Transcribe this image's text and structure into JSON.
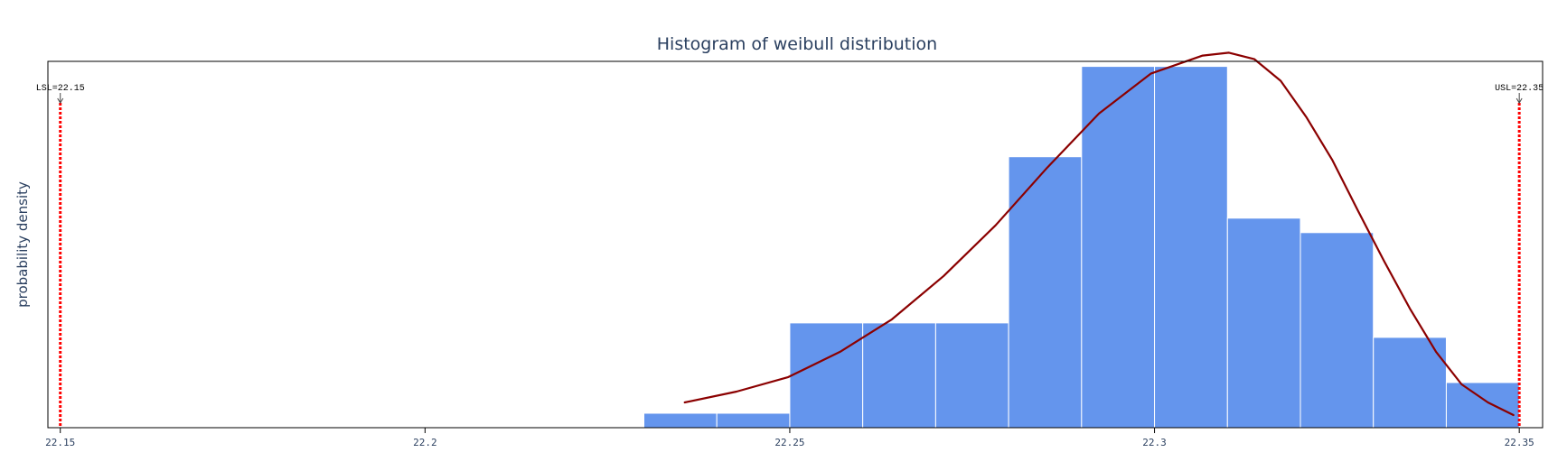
{
  "chart_data": {
    "type": "bar",
    "title": "Histogram of weibull distribution",
    "xlabel": "",
    "ylabel": "probability density",
    "xlim": [
      22.1483,
      22.3532
    ],
    "ylim": [
      0,
      1.014
    ],
    "x_ticks": [
      {
        "value": 22.15,
        "label": "22.15"
      },
      {
        "value": 22.2,
        "label": "22.2"
      },
      {
        "value": 22.25,
        "label": "22.25"
      },
      {
        "value": 22.3,
        "label": "22.3"
      },
      {
        "value": 22.35,
        "label": "22.35"
      }
    ],
    "bins": [
      {
        "x0": 22.23,
        "x1": 22.24,
        "y": 0.04
      },
      {
        "x0": 22.24,
        "x1": 22.25,
        "y": 0.04
      },
      {
        "x0": 22.25,
        "x1": 22.26,
        "y": 0.29
      },
      {
        "x0": 22.26,
        "x1": 22.27,
        "y": 0.29
      },
      {
        "x0": 22.27,
        "x1": 22.28,
        "y": 0.29
      },
      {
        "x0": 22.28,
        "x1": 22.29,
        "y": 0.75
      },
      {
        "x0": 22.29,
        "x1": 22.3,
        "y": 1.0
      },
      {
        "x0": 22.3,
        "x1": 22.31,
        "y": 1.0
      },
      {
        "x0": 22.31,
        "x1": 22.32,
        "y": 0.58
      },
      {
        "x0": 22.32,
        "x1": 22.33,
        "y": 0.54
      },
      {
        "x0": 22.33,
        "x1": 22.34,
        "y": 0.25
      },
      {
        "x0": 22.34,
        "x1": 22.35,
        "y": 0.125
      }
    ],
    "curve": {
      "x": [
        22.2356,
        22.2427,
        22.2498,
        22.2569,
        22.264,
        22.2711,
        22.2782,
        22.2853,
        22.2924,
        22.2995,
        22.3066,
        22.3102,
        22.3137,
        22.3173,
        22.3208,
        22.3244,
        22.3279,
        22.3315,
        22.335,
        22.3386,
        22.3421,
        22.3457,
        22.3492
      ],
      "y": [
        0.07,
        0.1,
        0.14,
        0.21,
        0.3,
        0.42,
        0.56,
        0.72,
        0.87,
        0.98,
        1.03,
        1.038,
        1.02,
        0.96,
        0.86,
        0.74,
        0.6,
        0.46,
        0.33,
        0.21,
        0.12,
        0.07,
        0.035
      ],
      "color": "#8b0000"
    },
    "spec_lines": [
      {
        "label": "LSL=22.15",
        "value": 22.15,
        "color": "#ff0000"
      },
      {
        "label": "USL=22.35",
        "value": 22.35,
        "color": "#ff0000"
      }
    ],
    "bar_color": "#6495ed",
    "legend": "none",
    "grid": false
  }
}
